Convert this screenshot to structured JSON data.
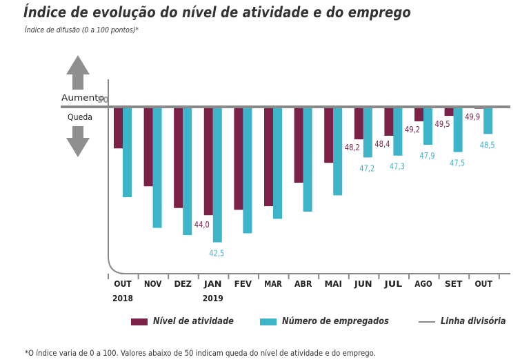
{
  "title": "Índice de evolução do nível de atividade e do emprego",
  "subtitle": "Índice de difusão (0 a 100 pontos)*",
  "footnote": "*O índice varia de 0 a 100. Valores abaixo de 50 indicam queda do nível de atividade e do emprego.",
  "colors": {
    "activity": "#7b2147",
    "employment": "#3db4c8",
    "divider": "#8a8a8a",
    "arrow": "#8f8f8f"
  },
  "chart_data": {
    "type": "bar",
    "title": "Índice de evolução do nível de atividade e do emprego",
    "subtitle": "Índice de difusão (0 a 100 pontos)*",
    "baseline": 50,
    "baseline_label": "50",
    "up_label": "Aumento",
    "down_label": "Queda",
    "categories": [
      "OUT",
      "NOV",
      "DEZ",
      "JAN",
      "FEV",
      "MAR",
      "ABR",
      "MAI",
      "JUN",
      "JUL",
      "AGO",
      "SET",
      "OUT"
    ],
    "category_years": [
      "2018",
      "",
      "",
      "2019",
      "",
      "",
      "",
      "",
      "",
      "",
      "",
      "",
      ""
    ],
    "series": [
      {
        "name": "Nível de atividade",
        "values": [
          47.7,
          45.6,
          44.4,
          44.0,
          44.3,
          44.5,
          45.8,
          46.9,
          48.2,
          48.4,
          49.2,
          49.5,
          49.9
        ],
        "labels": [
          "",
          "",
          "",
          "44,0",
          "",
          "",
          "",
          "",
          "48,2",
          "48,4",
          "49,2",
          "49,5",
          "49,9"
        ]
      },
      {
        "name": "Número de empregados",
        "values": [
          45.0,
          43.3,
          42.9,
          42.5,
          43.0,
          43.8,
          44.2,
          45.1,
          47.2,
          47.3,
          47.9,
          47.5,
          48.5
        ],
        "labels": [
          "",
          "",
          "",
          "42,5",
          "",
          "",
          "",
          "",
          "47,2",
          "47,3",
          "47,9",
          "47,5",
          "48,5"
        ]
      }
    ],
    "legend": [
      "Nível de atividade",
      "Número de empregados",
      "Linha divisória"
    ],
    "legend_position": "bottom",
    "xlabel": "",
    "ylabel": "",
    "grid": false
  }
}
